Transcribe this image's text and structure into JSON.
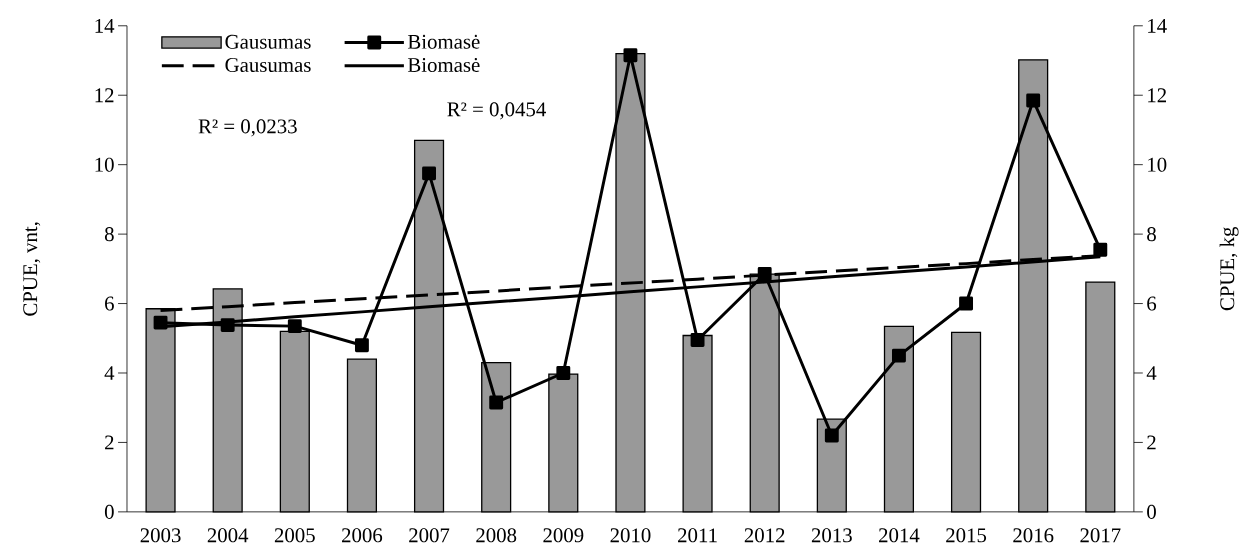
{
  "chart_data": {
    "type": "bar",
    "categories": [
      "2003",
      "2004",
      "2005",
      "2006",
      "2007",
      "2008",
      "2009",
      "2010",
      "2011",
      "2012",
      "2013",
      "2014",
      "2015",
      "2016",
      "2017"
    ],
    "ylabel": "CPUE, vnt,",
    "y2label": "CPUE, kg",
    "ylim": [
      0,
      14
    ],
    "yticks": [
      0,
      2,
      4,
      6,
      8,
      10,
      12,
      14
    ],
    "y2lim": [
      0,
      14
    ],
    "y2ticks": [
      0,
      2,
      4,
      6,
      8,
      10,
      12,
      14
    ],
    "series": [
      {
        "name": "Gausumas",
        "color": "#999999",
        "values": [
          5.85,
          6.42,
          5.2,
          4.4,
          10.7,
          4.3,
          3.97,
          13.2,
          5.08,
          6.85,
          2.67,
          5.34,
          5.17,
          13.02,
          6.62
        ]
      },
      {
        "name": "Biomasė",
        "type": "line",
        "axis": "y2",
        "color": "#000000",
        "marker": "square",
        "values": [
          5.45,
          5.38,
          5.35,
          4.8,
          9.75,
          3.15,
          4.0,
          13.15,
          4.95,
          6.85,
          2.2,
          4.5,
          6.0,
          11.85,
          7.55
        ]
      },
      {
        "name": "Gausumas",
        "type": "line",
        "line_style": "dashed",
        "color": "#000000",
        "values": [
          5.8,
          5.91,
          6.03,
          6.14,
          6.25,
          6.36,
          6.48,
          6.59,
          6.7,
          6.82,
          6.93,
          7.04,
          7.15,
          7.27,
          7.38
        ]
      },
      {
        "name": "Biomasė",
        "type": "line",
        "axis": "y2",
        "line_style": "solid",
        "color": "#000000",
        "values": [
          5.33,
          5.47,
          5.62,
          5.76,
          5.91,
          6.05,
          6.19,
          6.34,
          6.48,
          6.62,
          6.77,
          6.91,
          7.05,
          7.2,
          7.35
        ]
      }
    ],
    "annotations": [
      "R² = 0,0233",
      "R² = 0,0454"
    ],
    "legend": "top left",
    "grid": false
  }
}
